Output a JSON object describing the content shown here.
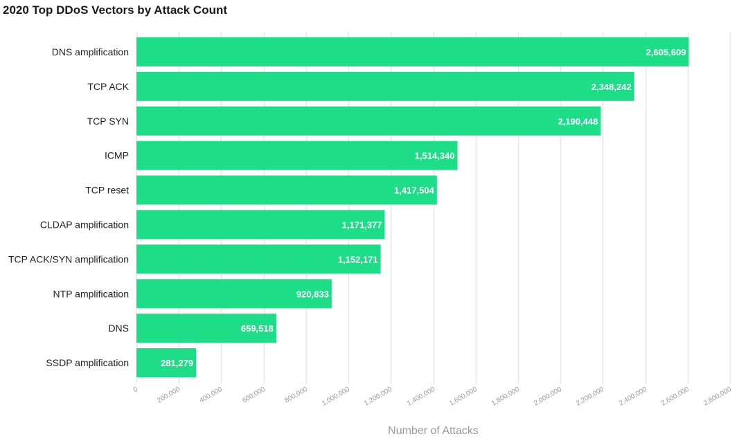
{
  "chart_data": {
    "type": "bar",
    "orientation": "horizontal",
    "title": "2020 Top DDoS Vectors by Attack Count",
    "xlabel": "Number of Attacks",
    "ylabel": "",
    "categories": [
      "DNS amplification",
      "TCP ACK",
      "TCP SYN",
      "ICMP",
      "TCP reset",
      "CLDAP amplification",
      "TCP ACK/SYN amplification",
      "NTP amplification",
      "DNS",
      "SSDP amplification"
    ],
    "values": [
      2605609,
      2348242,
      2190448,
      1514340,
      1417504,
      1171377,
      1152171,
      920833,
      659518,
      281279
    ],
    "value_labels": [
      "2,605,609",
      "2,348,242",
      "2,190,448",
      "1,514,340",
      "1,417,504",
      "1,171,377",
      "1,152,171",
      "920,833",
      "659,518",
      "281,279"
    ],
    "xlim": [
      0,
      2800000
    ],
    "xticks": [
      0,
      200000,
      400000,
      600000,
      800000,
      1000000,
      1200000,
      1400000,
      1600000,
      1800000,
      2000000,
      2200000,
      2400000,
      2600000,
      2800000
    ],
    "xtick_labels": [
      "0",
      "200,000",
      "400,000",
      "600,000",
      "800,000",
      "1,000,000",
      "1,200,000",
      "1,400,000",
      "1,600,000",
      "1,800,000",
      "2,000,000",
      "2,200,000",
      "2,400,000",
      "2,600,000",
      "2,800,000"
    ],
    "grid": true,
    "legend": "none",
    "colors": {
      "bar": "#1ddd86",
      "grid": "#e6e6e6",
      "value_label": "#ffffff",
      "tick_label": "#9a9a9a"
    }
  }
}
